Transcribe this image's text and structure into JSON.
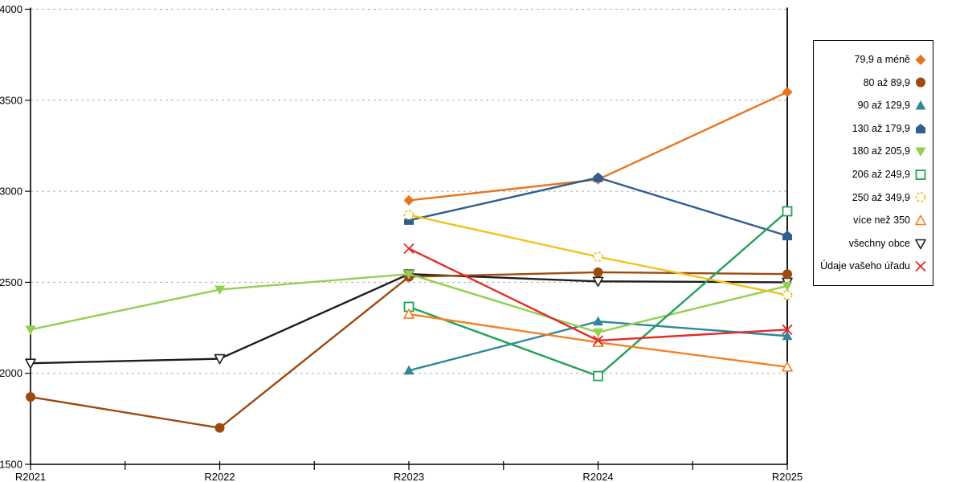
{
  "chart_data": {
    "type": "line",
    "title": "",
    "xlabel": "",
    "ylabel": "",
    "categories": [
      "R2021",
      "R2022",
      "R2023",
      "R2024",
      "R2025"
    ],
    "ylim": [
      1500,
      4000
    ],
    "yticks": [
      1500,
      2000,
      2500,
      3000,
      3500,
      4000
    ],
    "grid": "horizontal-dashed",
    "grid_color": "#ADADAD",
    "axis_color": "#000000",
    "legend_position": "right-box",
    "x_minor_ticks_between_categories": true,
    "right_border_line_at": "R2025",
    "series": [
      {
        "name": "79,9 a méně",
        "color": "#E8751E",
        "marker": "diamond",
        "values": [
          null,
          null,
          2950,
          3065,
          3545
        ]
      },
      {
        "name": "80 až 89,9",
        "color": "#9D4A0E",
        "marker": "circle",
        "values": [
          1870,
          1700,
          2530,
          2555,
          2545
        ]
      },
      {
        "name": "90 až 129,9",
        "color": "#31859B",
        "marker": "triangle-up",
        "values": [
          null,
          null,
          2015,
          2285,
          2205
        ]
      },
      {
        "name": "130 až 179,9",
        "color": "#305E90",
        "marker": "pentagon",
        "values": [
          null,
          null,
          2840,
          3075,
          2755
        ]
      },
      {
        "name": "180 až 205,9",
        "color": "#92D050",
        "marker": "triangle-down",
        "values": [
          2240,
          2460,
          2545,
          2225,
          2480
        ]
      },
      {
        "name": "206 až 249,9",
        "color": "#22A25B",
        "marker": "square-open",
        "values": [
          null,
          null,
          2365,
          1985,
          2890
        ]
      },
      {
        "name": "250 až 349,9",
        "color": "#EFC31C",
        "marker": "circle-open-dashed",
        "values": [
          null,
          null,
          2870,
          2640,
          2430
        ]
      },
      {
        "name": "více než 350",
        "color": "#F58024",
        "marker": "triangle-up-open",
        "values": [
          null,
          null,
          2325,
          2170,
          2035
        ]
      },
      {
        "name": "všechny obce",
        "color": "#1C1C1C",
        "marker": "triangle-down-open",
        "values": [
          2055,
          2080,
          2545,
          2505,
          2500
        ]
      },
      {
        "name": "Údaje vašeho úřadu",
        "color": "#E52A28",
        "marker": "x",
        "values": [
          null,
          null,
          2685,
          2180,
          2240
        ]
      }
    ],
    "draw_order": [
      8,
      0,
      1,
      2,
      3,
      4,
      5,
      6,
      7,
      9
    ]
  }
}
